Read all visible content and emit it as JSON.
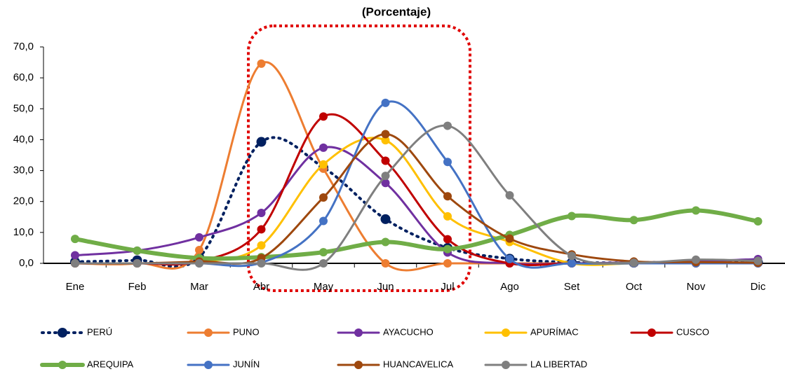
{
  "chart_data": {
    "type": "line",
    "title": "(Porcentaje)",
    "categories": [
      "Ene",
      "Feb",
      "Mar",
      "Abr",
      "May",
      "Jun",
      "Jul",
      "Ago",
      "Set",
      "Oct",
      "Nov",
      "Dic"
    ],
    "ylim": [
      0,
      70
    ],
    "yticks": [
      {
        "value": 0,
        "label": "0,0"
      },
      {
        "value": 10,
        "label": "10,0"
      },
      {
        "value": 20,
        "label": "20,0"
      },
      {
        "value": 30,
        "label": "30,0"
      },
      {
        "value": 40,
        "label": "40,0"
      },
      {
        "value": 50,
        "label": "50,0"
      },
      {
        "value": 60,
        "label": "60,0"
      },
      {
        "value": 70,
        "label": "70,0"
      }
    ],
    "smooth": true,
    "series": [
      {
        "name": "PERÚ",
        "color": "#002060",
        "line_style": "dotted",
        "values": [
          0.5,
          1,
          2,
          39.3,
          31,
          14.3,
          5,
          1.5,
          0.3,
          0.2,
          0.5,
          0.3
        ]
      },
      {
        "name": "PUNO",
        "color": "#ED7D31",
        "values": [
          0,
          0,
          4.3,
          64.6,
          30.6,
          0,
          0,
          0,
          0,
          0,
          0.5,
          0
        ]
      },
      {
        "name": "AYACUCHO",
        "color": "#7030A0",
        "values": [
          2.6,
          4.1,
          8.4,
          16.3,
          37.4,
          26,
          3.5,
          0,
          0,
          0.3,
          0.6,
          1.4
        ]
      },
      {
        "name": "APURÍMAC",
        "color": "#FFC000",
        "values": [
          0,
          0,
          0.5,
          5.8,
          32,
          39.8,
          15.2,
          6.9,
          0,
          0,
          0,
          0
        ]
      },
      {
        "name": "CUSCO",
        "color": "#C00000",
        "values": [
          0,
          0,
          0.6,
          11,
          47.5,
          33.2,
          7.8,
          0,
          0,
          0,
          0,
          0
        ]
      },
      {
        "name": "AREQUIPA",
        "color": "#70AD47",
        "line_style": "thick",
        "values": [
          7.9,
          4.1,
          1.7,
          2,
          3.6,
          6.9,
          4.6,
          9.2,
          15.3,
          14,
          17.1,
          13.6
        ]
      },
      {
        "name": "JUNÍN",
        "color": "#4472C4",
        "values": [
          0,
          0,
          0,
          0.2,
          13.7,
          51.9,
          32.8,
          1.4,
          0,
          0,
          0,
          0
        ]
      },
      {
        "name": "HUANCAVELICA",
        "color": "#9E480E",
        "values": [
          0,
          0,
          0.6,
          1.7,
          21.3,
          41.8,
          21.7,
          8,
          2.9,
          0.6,
          0.4,
          0.2
        ]
      },
      {
        "name": "LA LIBERTAD",
        "color": "#7F7F7F",
        "values": [
          0,
          0,
          0,
          0,
          0,
          28.3,
          44.5,
          22,
          2.4,
          0.2,
          1.2,
          0.8
        ]
      }
    ]
  }
}
